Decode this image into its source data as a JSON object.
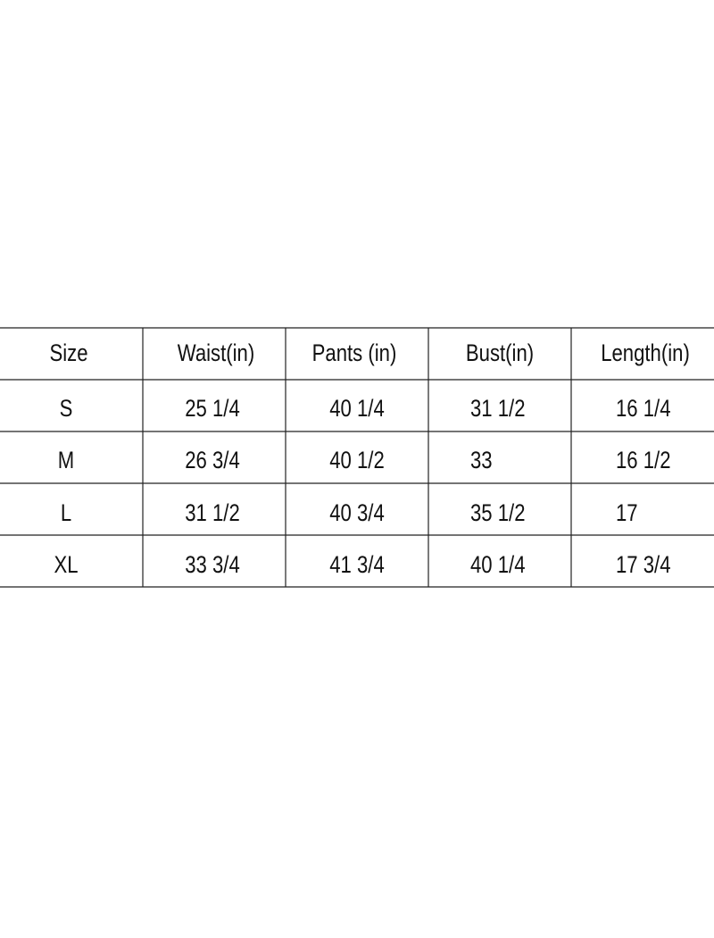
{
  "table": {
    "header": [
      "Size",
      "Waist(in)",
      "Pants (in)",
      "Bust(in)",
      "Length(in)"
    ],
    "rows": [
      [
        "S",
        "25 1/4",
        "40 1/4",
        "31 1/2",
        "16 1/4"
      ],
      [
        "M",
        "26 3/4",
        "40 1/2",
        "33",
        "16 1/2"
      ],
      [
        "L",
        "31 1/2",
        "40 3/4",
        "35 1/2",
        "17"
      ],
      [
        "XL",
        "33 3/4",
        "41 3/4",
        "40 1/4",
        "17 3/4"
      ]
    ]
  }
}
